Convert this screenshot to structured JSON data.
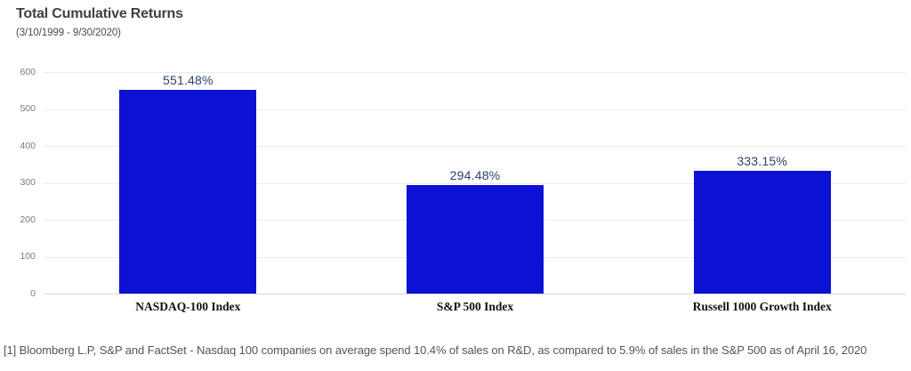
{
  "header": {
    "title": "Total Cumulative Returns",
    "subtitle": "(3/10/1999 - 9/30/2020)"
  },
  "chart_data": {
    "type": "bar",
    "title": "Total Cumulative Returns",
    "subtitle": "(3/10/1999 - 9/30/2020)",
    "categories": [
      "NASDAQ-100 Index",
      "S&P 500 Index",
      "Russell 1000 Growth Index"
    ],
    "values": [
      551.48,
      294.48,
      333.15
    ],
    "value_labels": [
      "551.48%",
      "294.48%",
      "333.15%"
    ],
    "xlabel": "",
    "ylabel": "",
    "ylim": [
      0,
      600
    ],
    "yticks": [
      0,
      100,
      200,
      300,
      400,
      500,
      600
    ],
    "grid": true,
    "legend": false,
    "bar_color": "#0d11d4",
    "value_label_color": "#31416b"
  },
  "footnote": {
    "text": "[1] Bloomberg L.P, S&P and FactSet - Nasdaq 100 companies on average spend 10.4% of sales on R&D, as compared to 5.9% of sales in the S&P 500 as of April 16, 2020"
  }
}
